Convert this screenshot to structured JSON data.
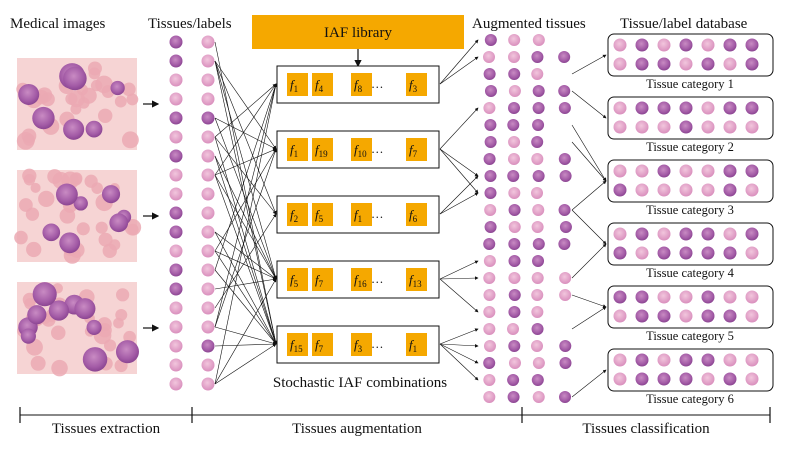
{
  "headings": {
    "medical_images": "Medical images",
    "tissues_labels": "Tissues/labels",
    "iaf_library": "IAF library",
    "augmented_tissues": "Augmented tissues",
    "database": "Tissue/label database",
    "stochastic": "Stochastic IAF combinations"
  },
  "colors": {
    "iaf_orange": "#F5A800",
    "stain_pink": "#E7A6C8",
    "cell_purple": "#9A4E9E",
    "background_pink": "#F4D3D7"
  },
  "combinations": [
    {
      "functions": [
        "1",
        "4",
        "8",
        "…",
        "3"
      ]
    },
    {
      "functions": [
        "1",
        "19",
        "10",
        "…",
        "7"
      ]
    },
    {
      "functions": [
        "2",
        "5",
        "1",
        "…",
        "6"
      ]
    },
    {
      "functions": [
        "5",
        "7",
        "16",
        "…",
        "13"
      ]
    },
    {
      "functions": [
        "15",
        "7",
        "3",
        "…",
        "1"
      ]
    }
  ],
  "function_symbol": "f",
  "categories": [
    "Tissue  category 1",
    "Tissue  category 2",
    "Tissue  category 3",
    "Tissue  category 4",
    "Tissue  category 5",
    "Tissue  category 6"
  ],
  "stages": [
    "Tissues extraction",
    "Tissues augmentation",
    "Tissues classification"
  ]
}
